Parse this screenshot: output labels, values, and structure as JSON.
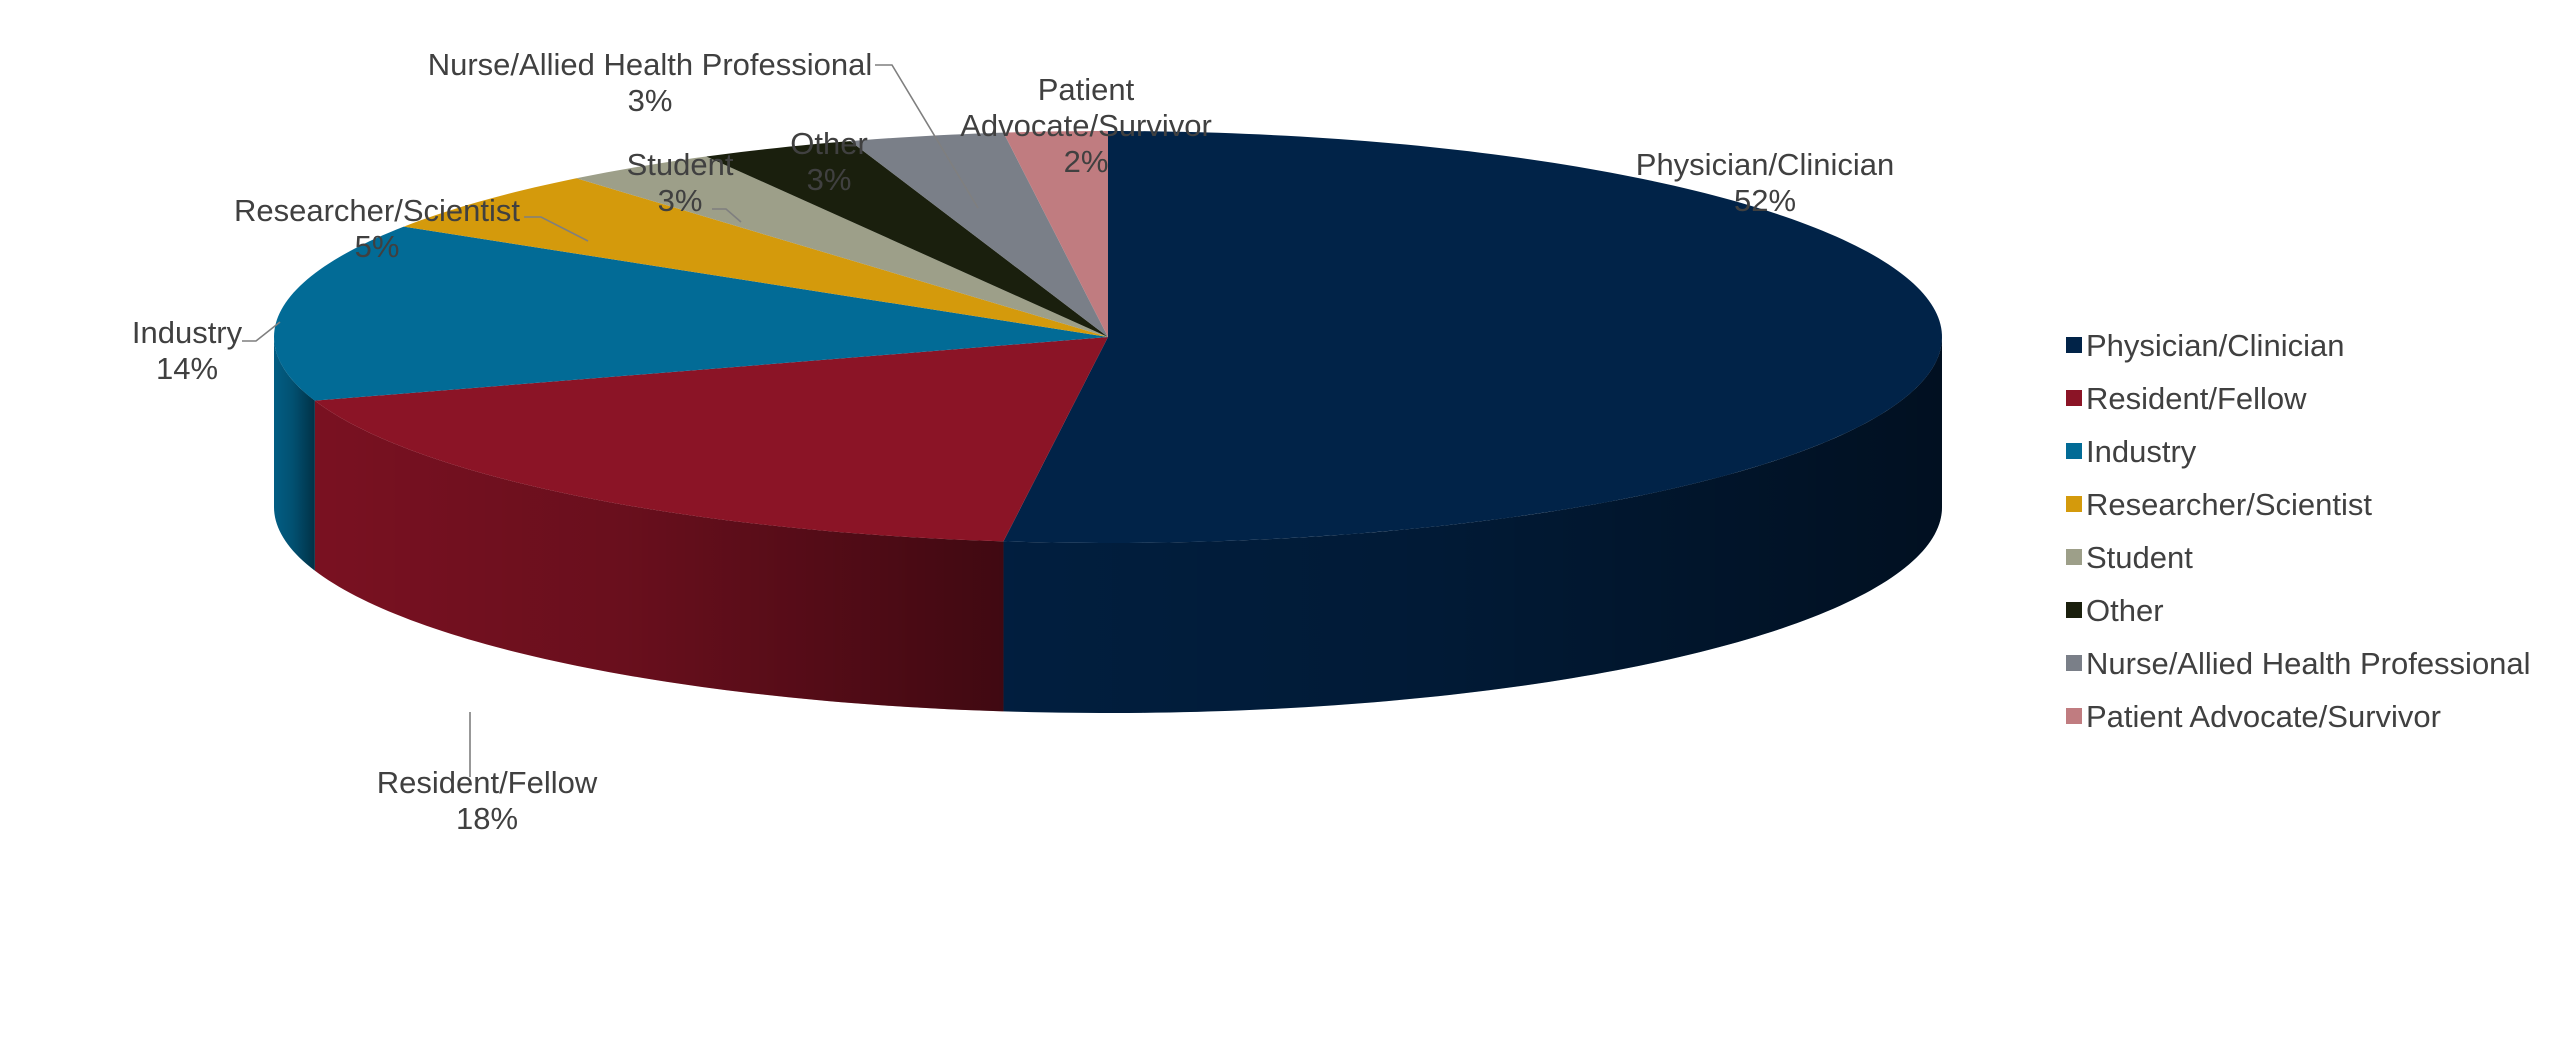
{
  "chart_data": {
    "type": "pie",
    "style": "3d",
    "title": "",
    "legend_position": "right",
    "slices": [
      {
        "label": "Physician/Clinician",
        "value": 52,
        "value_label": "52%",
        "color": "#012348"
      },
      {
        "label": "Resident/Fellow",
        "value": 18,
        "value_label": "18%",
        "color": "#8b1426"
      },
      {
        "label": "Industry",
        "value": 14,
        "value_label": "14%",
        "color": "#026b96"
      },
      {
        "label": "Researcher/Scientist",
        "value": 5,
        "value_label": "5%",
        "color": "#d49a0c"
      },
      {
        "label": "Student",
        "value": 3,
        "value_label": "3%",
        "color": "#9d9f89"
      },
      {
        "label": "Other",
        "value": 3,
        "value_label": "3%",
        "color": "#1a1f0d"
      },
      {
        "label": "Nurse/Allied Health Professional",
        "value": 3,
        "value_label": "3%",
        "color": "#7a7f88"
      },
      {
        "label": "Patient Advocate/Survivor",
        "value": 2,
        "value_label": "2%",
        "color": "#c07c80"
      }
    ]
  }
}
